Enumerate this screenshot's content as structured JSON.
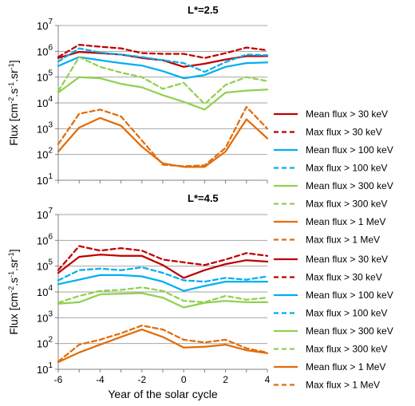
{
  "chart_data": [
    {
      "type": "line",
      "title": "L*=2.5",
      "ylabel": "Flux [cm-2.s-1.sr-1]",
      "xlabel": "",
      "yscale": "log",
      "ylim": [
        10,
        10000000
      ],
      "xlim": [
        -6,
        4
      ],
      "y_tick_labels": [
        {
          "base": "10",
          "exp": "1"
        },
        {
          "base": "10",
          "exp": "2"
        },
        {
          "base": "10",
          "exp": "3"
        },
        {
          "base": "10",
          "exp": "4"
        },
        {
          "base": "10",
          "exp": "5"
        },
        {
          "base": "10",
          "exp": "6"
        },
        {
          "base": "10",
          "exp": "7"
        }
      ],
      "x_tick_labels": [],
      "legend_position": "right",
      "x": [
        -6,
        -5,
        -4,
        -3,
        -2,
        -1,
        0,
        1,
        2,
        3,
        4
      ],
      "series": [
        {
          "name": "Mean flux > 30 keV",
          "color": "#c00000",
          "dash": false,
          "values": [
            550000,
            950000,
            850000,
            750000,
            550000,
            450000,
            250000,
            330000,
            480000,
            650000,
            650000
          ]
        },
        {
          "name": "Max flux > 30 keV",
          "color": "#c00000",
          "dash": true,
          "values": [
            600000,
            1800000,
            1500000,
            1300000,
            850000,
            800000,
            800000,
            550000,
            850000,
            1400000,
            1100000
          ]
        },
        {
          "name": "Mean flux > 100 keV",
          "color": "#00b0f0",
          "dash": false,
          "values": [
            270000,
            600000,
            450000,
            350000,
            280000,
            170000,
            90000,
            120000,
            250000,
            350000,
            370000
          ]
        },
        {
          "name": "Max flux > 100 keV",
          "color": "#00b0f0",
          "dash": true,
          "values": [
            400000,
            1300000,
            900000,
            750000,
            600000,
            450000,
            350000,
            160000,
            380000,
            750000,
            700000
          ]
        },
        {
          "name": "Mean flux > 300 keV",
          "color": "#92d050",
          "dash": false,
          "values": [
            25000,
            100000,
            90000,
            55000,
            40000,
            20000,
            11000,
            5500,
            25000,
            30000,
            33000
          ]
        },
        {
          "name": "Max flux > 300 keV",
          "color": "#92d050",
          "dash": true,
          "values": [
            28000,
            600000,
            250000,
            150000,
            100000,
            35000,
            60000,
            9000,
            50000,
            100000,
            70000
          ]
        },
        {
          "name": "Mean flux > 1 MeV",
          "color": "#e36c09",
          "dash": false,
          "values": [
            130,
            1100,
            2600,
            1300,
            200,
            45,
            33,
            33,
            130,
            2300,
            420
          ]
        },
        {
          "name": "Max flux > 1 MeV",
          "color": "#e36c09",
          "dash": true,
          "values": [
            250,
            3800,
            5500,
            3000,
            350,
            40,
            35,
            38,
            180,
            7000,
            1000
          ]
        }
      ]
    },
    {
      "type": "line",
      "title": "L*=4.5",
      "ylabel": "Flux [cm-2.s-1.sr-1]",
      "xlabel": "Year of the solar cycle",
      "yscale": "log",
      "ylim": [
        10,
        10000000
      ],
      "xlim": [
        -6,
        4
      ],
      "y_tick_labels": [
        {
          "base": "10",
          "exp": "1"
        },
        {
          "base": "10",
          "exp": "2"
        },
        {
          "base": "10",
          "exp": "3"
        },
        {
          "base": "10",
          "exp": "4"
        },
        {
          "base": "10",
          "exp": "5"
        },
        {
          "base": "10",
          "exp": "6"
        },
        {
          "base": "10",
          "exp": "7"
        }
      ],
      "x_tick_labels": [
        "-6",
        "-4",
        "-2",
        "0",
        "2",
        "4"
      ],
      "legend_position": "right",
      "x": [
        -6,
        -5,
        -4,
        -3,
        -2,
        -1,
        0,
        1,
        2,
        3,
        4
      ],
      "series": [
        {
          "name": "Mean flux > 30 keV",
          "color": "#c00000",
          "dash": false,
          "values": [
            55000,
            230000,
            280000,
            250000,
            250000,
            110000,
            35000,
            70000,
            120000,
            170000,
            150000
          ]
        },
        {
          "name": "Max flux > 30 keV",
          "color": "#c00000",
          "dash": true,
          "values": [
            70000,
            600000,
            400000,
            500000,
            400000,
            180000,
            140000,
            110000,
            180000,
            320000,
            250000
          ]
        },
        {
          "name": "Mean flux > 100 keV",
          "color": "#00b0f0",
          "dash": false,
          "values": [
            20000,
            30000,
            45000,
            45000,
            40000,
            25000,
            11000,
            17000,
            25000,
            25000,
            25000
          ]
        },
        {
          "name": "Max flux > 100 keV",
          "color": "#00b0f0",
          "dash": true,
          "values": [
            28000,
            70000,
            80000,
            70000,
            90000,
            55000,
            28000,
            25000,
            35000,
            30000,
            40000
          ]
        },
        {
          "name": "Mean flux > 300 keV",
          "color": "#92d050",
          "dash": false,
          "values": [
            3500,
            4000,
            8000,
            8500,
            9000,
            6000,
            2500,
            3800,
            4500,
            4000,
            4000
          ]
        },
        {
          "name": "Max flux > 300 keV",
          "color": "#92d050",
          "dash": true,
          "values": [
            3800,
            7000,
            11000,
            12000,
            15000,
            11000,
            4500,
            4000,
            7000,
            5000,
            6000
          ]
        },
        {
          "name": "Mean flux > 1 MeV",
          "color": "#e36c09",
          "dash": false,
          "values": [
            19,
            45,
            90,
            180,
            350,
            180,
            70,
            75,
            90,
            55,
            42
          ]
        },
        {
          "name": "Max flux > 1 MeV",
          "color": "#e36c09",
          "dash": true,
          "values": [
            20,
            90,
            140,
            250,
            500,
            350,
            140,
            110,
            140,
            65,
            45
          ]
        }
      ]
    }
  ]
}
